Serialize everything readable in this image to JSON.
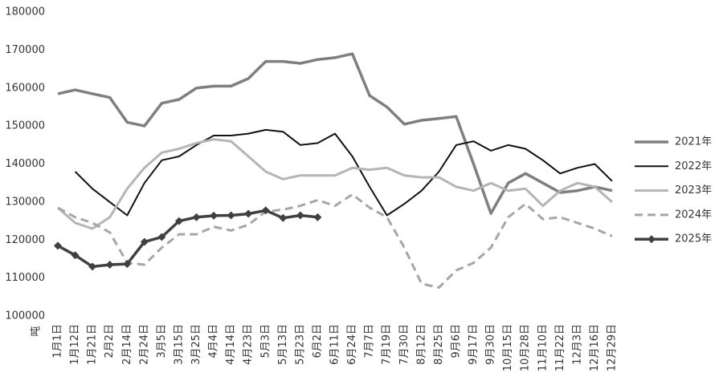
{
  "chart_data": {
    "type": "line",
    "y_label": "吨",
    "categories": [
      "1月1日",
      "1月12日",
      "1月21日",
      "2月2日",
      "2月14日",
      "2月24日",
      "3月5日",
      "3月15日",
      "3月25日",
      "4月4日",
      "4月14日",
      "4月23日",
      "5月3日",
      "5月13日",
      "5月23日",
      "6月2日",
      "6月11日",
      "6月24日",
      "7月7日",
      "7月19日",
      "7月30日",
      "8月12日",
      "8月25日",
      "9月6日",
      "9月17日",
      "9月30日",
      "10月15日",
      "10月28日",
      "11月10日",
      "11月22日",
      "12月3日",
      "12月16日",
      "12月29日"
    ],
    "ylim": [
      100000,
      180000
    ],
    "yticks": [
      100000,
      110000,
      120000,
      130000,
      140000,
      150000,
      160000,
      170000,
      180000
    ],
    "grid": false,
    "legend": "right",
    "series": [
      {
        "name": "2021年",
        "color": "#7f7f7f",
        "width": 3.5,
        "values": [
          158500,
          159500,
          158500,
          157500,
          151000,
          150000,
          156000,
          157000,
          160000,
          160500,
          160500,
          162500,
          167000,
          167000,
          166500,
          167500,
          168000,
          169000,
          158000,
          155000,
          150500,
          151500,
          152000,
          152500,
          140000,
          127000,
          135000,
          137500,
          135000,
          132500,
          133000,
          134000,
          133000
        ]
      },
      {
        "name": "2022年",
        "color": "#111111",
        "width": 2,
        "values": [
          null,
          138000,
          133500,
          130000,
          126500,
          135000,
          141000,
          142000,
          145000,
          147500,
          147500,
          148000,
          149000,
          148500,
          145000,
          145500,
          148000,
          142000,
          134000,
          126500,
          129500,
          133000,
          138000,
          145000,
          146000,
          143500,
          145000,
          144000,
          141000,
          137500,
          139000,
          140000,
          135500
        ]
      },
      {
        "name": "2023年",
        "color": "#b5b5b5",
        "width": 3,
        "values": [
          128500,
          124500,
          123000,
          126000,
          133500,
          139000,
          143000,
          144000,
          145500,
          146500,
          146000,
          142000,
          138000,
          136000,
          137000,
          137000,
          137000,
          139000,
          138500,
          139000,
          137000,
          136500,
          136500,
          134000,
          133000,
          135000,
          133000,
          133500,
          129000,
          133000,
          135000,
          134000,
          130000
        ]
      },
      {
        "name": "2024年",
        "color": "#a6a6a6",
        "width": 3,
        "dash": true,
        "values": [
          128500,
          126000,
          124500,
          122000,
          114000,
          113500,
          118000,
          121500,
          121500,
          123500,
          122500,
          124000,
          127500,
          128000,
          129000,
          130500,
          129000,
          132000,
          128500,
          126000,
          118000,
          108500,
          107500,
          112000,
          114000,
          118000,
          126000,
          129500,
          125500,
          126000,
          124500,
          123000,
          121000
        ]
      },
      {
        "name": "2025年",
        "color": "#404040",
        "width": 3.5,
        "marker": "diamond",
        "values": [
          118500,
          116000,
          113000,
          113500,
          113700,
          119500,
          120800,
          125000,
          126000,
          126400,
          126500,
          126900,
          127800,
          125800,
          126500,
          126000,
          null,
          null,
          null,
          null,
          null,
          null,
          null,
          null,
          null,
          null,
          null,
          null,
          null,
          null,
          null,
          null,
          null
        ]
      }
    ]
  }
}
